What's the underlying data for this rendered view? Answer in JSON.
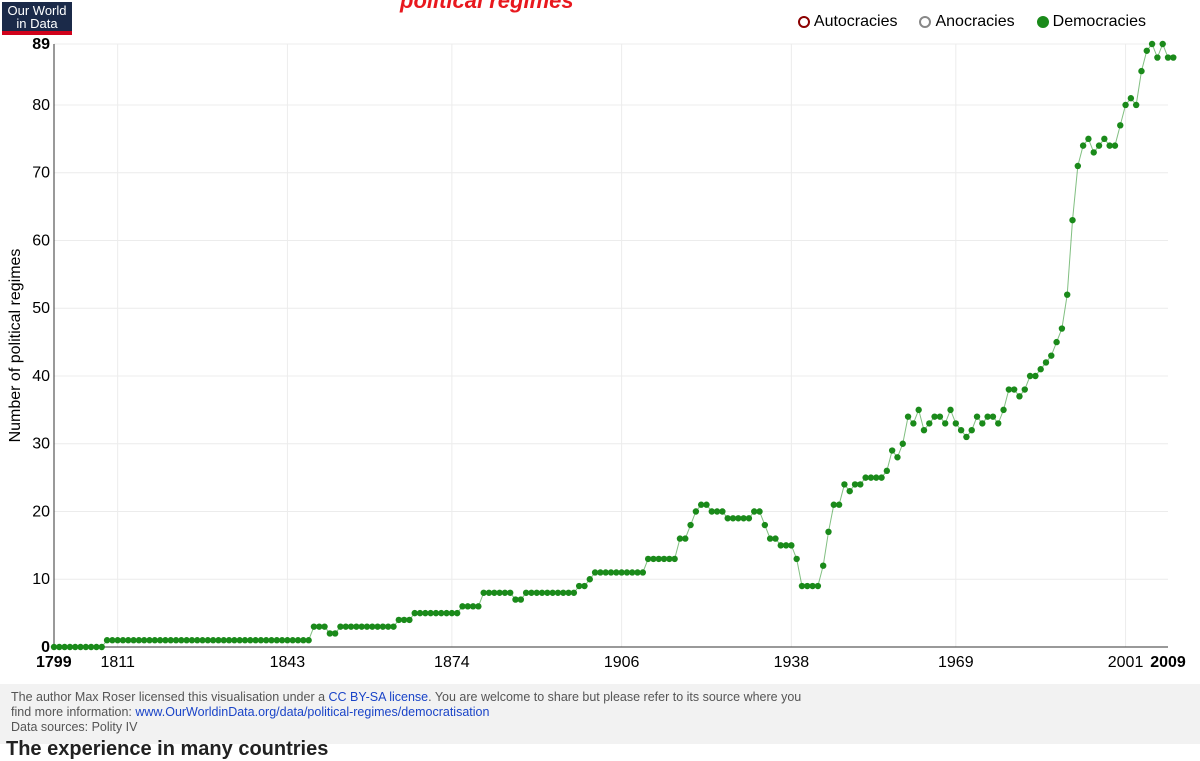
{
  "logo": {
    "line1": "Our World",
    "line2": "in Data"
  },
  "header": {
    "title_fragment": "political regimes"
  },
  "legend": {
    "items": [
      {
        "label": "Autocracies",
        "color": "#8b0000",
        "active": false
      },
      {
        "label": "Anocracies",
        "color": "#888888",
        "active": false
      },
      {
        "label": "Democracies",
        "color": "#1a8a1a",
        "active": true
      }
    ]
  },
  "chart_data": {
    "type": "scatter",
    "ylabel": "Number of political regimes",
    "xlabel": "",
    "xlim": [
      1799,
      2009
    ],
    "ylim": [
      0,
      89
    ],
    "x_ticks": [
      1799,
      1811,
      1843,
      1874,
      1906,
      1938,
      1969,
      2001,
      2009
    ],
    "x_ticks_bold": [
      1799,
      2009
    ],
    "y_ticks": [
      0,
      10,
      20,
      30,
      40,
      50,
      60,
      70,
      80,
      89
    ],
    "y_ticks_bold": [
      0,
      89
    ],
    "grid": true,
    "series": [
      {
        "name": "Democracies",
        "color": "#1a8a1a",
        "values": [
          [
            1799,
            0
          ],
          [
            1800,
            0
          ],
          [
            1801,
            0
          ],
          [
            1802,
            0
          ],
          [
            1803,
            0
          ],
          [
            1804,
            0
          ],
          [
            1805,
            0
          ],
          [
            1806,
            0
          ],
          [
            1807,
            0
          ],
          [
            1808,
            0
          ],
          [
            1809,
            1
          ],
          [
            1810,
            1
          ],
          [
            1811,
            1
          ],
          [
            1812,
            1
          ],
          [
            1813,
            1
          ],
          [
            1814,
            1
          ],
          [
            1815,
            1
          ],
          [
            1816,
            1
          ],
          [
            1817,
            1
          ],
          [
            1818,
            1
          ],
          [
            1819,
            1
          ],
          [
            1820,
            1
          ],
          [
            1821,
            1
          ],
          [
            1822,
            1
          ],
          [
            1823,
            1
          ],
          [
            1824,
            1
          ],
          [
            1825,
            1
          ],
          [
            1826,
            1
          ],
          [
            1827,
            1
          ],
          [
            1828,
            1
          ],
          [
            1829,
            1
          ],
          [
            1830,
            1
          ],
          [
            1831,
            1
          ],
          [
            1832,
            1
          ],
          [
            1833,
            1
          ],
          [
            1834,
            1
          ],
          [
            1835,
            1
          ],
          [
            1836,
            1
          ],
          [
            1837,
            1
          ],
          [
            1838,
            1
          ],
          [
            1839,
            1
          ],
          [
            1840,
            1
          ],
          [
            1841,
            1
          ],
          [
            1842,
            1
          ],
          [
            1843,
            1
          ],
          [
            1844,
            1
          ],
          [
            1845,
            1
          ],
          [
            1846,
            1
          ],
          [
            1847,
            1
          ],
          [
            1848,
            3
          ],
          [
            1849,
            3
          ],
          [
            1850,
            3
          ],
          [
            1851,
            2
          ],
          [
            1852,
            2
          ],
          [
            1853,
            3
          ],
          [
            1854,
            3
          ],
          [
            1855,
            3
          ],
          [
            1856,
            3
          ],
          [
            1857,
            3
          ],
          [
            1858,
            3
          ],
          [
            1859,
            3
          ],
          [
            1860,
            3
          ],
          [
            1861,
            3
          ],
          [
            1862,
            3
          ],
          [
            1863,
            3
          ],
          [
            1864,
            4
          ],
          [
            1865,
            4
          ],
          [
            1866,
            4
          ],
          [
            1867,
            5
          ],
          [
            1868,
            5
          ],
          [
            1869,
            5
          ],
          [
            1870,
            5
          ],
          [
            1871,
            5
          ],
          [
            1872,
            5
          ],
          [
            1873,
            5
          ],
          [
            1874,
            5
          ],
          [
            1875,
            5
          ],
          [
            1876,
            6
          ],
          [
            1877,
            6
          ],
          [
            1878,
            6
          ],
          [
            1879,
            6
          ],
          [
            1880,
            8
          ],
          [
            1881,
            8
          ],
          [
            1882,
            8
          ],
          [
            1883,
            8
          ],
          [
            1884,
            8
          ],
          [
            1885,
            8
          ],
          [
            1886,
            7
          ],
          [
            1887,
            7
          ],
          [
            1888,
            8
          ],
          [
            1889,
            8
          ],
          [
            1890,
            8
          ],
          [
            1891,
            8
          ],
          [
            1892,
            8
          ],
          [
            1893,
            8
          ],
          [
            1894,
            8
          ],
          [
            1895,
            8
          ],
          [
            1896,
            8
          ],
          [
            1897,
            8
          ],
          [
            1898,
            9
          ],
          [
            1899,
            9
          ],
          [
            1900,
            10
          ],
          [
            1901,
            11
          ],
          [
            1902,
            11
          ],
          [
            1903,
            11
          ],
          [
            1904,
            11
          ],
          [
            1905,
            11
          ],
          [
            1906,
            11
          ],
          [
            1907,
            11
          ],
          [
            1908,
            11
          ],
          [
            1909,
            11
          ],
          [
            1910,
            11
          ],
          [
            1911,
            13
          ],
          [
            1912,
            13
          ],
          [
            1913,
            13
          ],
          [
            1914,
            13
          ],
          [
            1915,
            13
          ],
          [
            1916,
            13
          ],
          [
            1917,
            16
          ],
          [
            1918,
            16
          ],
          [
            1919,
            18
          ],
          [
            1920,
            20
          ],
          [
            1921,
            21
          ],
          [
            1922,
            21
          ],
          [
            1923,
            20
          ],
          [
            1924,
            20
          ],
          [
            1925,
            20
          ],
          [
            1926,
            19
          ],
          [
            1927,
            19
          ],
          [
            1928,
            19
          ],
          [
            1929,
            19
          ],
          [
            1930,
            19
          ],
          [
            1931,
            20
          ],
          [
            1932,
            20
          ],
          [
            1933,
            18
          ],
          [
            1934,
            16
          ],
          [
            1935,
            16
          ],
          [
            1936,
            15
          ],
          [
            1937,
            15
          ],
          [
            1938,
            15
          ],
          [
            1939,
            13
          ],
          [
            1940,
            9
          ],
          [
            1941,
            9
          ],
          [
            1942,
            9
          ],
          [
            1943,
            9
          ],
          [
            1944,
            12
          ],
          [
            1945,
            17
          ],
          [
            1946,
            21
          ],
          [
            1947,
            21
          ],
          [
            1948,
            24
          ],
          [
            1949,
            23
          ],
          [
            1950,
            24
          ],
          [
            1951,
            24
          ],
          [
            1952,
            25
          ],
          [
            1953,
            25
          ],
          [
            1954,
            25
          ],
          [
            1955,
            25
          ],
          [
            1956,
            26
          ],
          [
            1957,
            29
          ],
          [
            1958,
            28
          ],
          [
            1959,
            30
          ],
          [
            1960,
            34
          ],
          [
            1961,
            33
          ],
          [
            1962,
            35
          ],
          [
            1963,
            32
          ],
          [
            1964,
            33
          ],
          [
            1965,
            34
          ],
          [
            1966,
            34
          ],
          [
            1967,
            33
          ],
          [
            1968,
            35
          ],
          [
            1969,
            33
          ],
          [
            1970,
            32
          ],
          [
            1971,
            31
          ],
          [
            1972,
            32
          ],
          [
            1973,
            34
          ],
          [
            1974,
            33
          ],
          [
            1975,
            34
          ],
          [
            1976,
            34
          ],
          [
            1977,
            33
          ],
          [
            1978,
            35
          ],
          [
            1979,
            38
          ],
          [
            1980,
            38
          ],
          [
            1981,
            37
          ],
          [
            1982,
            38
          ],
          [
            1983,
            40
          ],
          [
            1984,
            40
          ],
          [
            1985,
            41
          ],
          [
            1986,
            42
          ],
          [
            1987,
            43
          ],
          [
            1988,
            45
          ],
          [
            1989,
            47
          ],
          [
            1990,
            52
          ],
          [
            1991,
            63
          ],
          [
            1992,
            71
          ],
          [
            1993,
            74
          ],
          [
            1994,
            75
          ],
          [
            1995,
            73
          ],
          [
            1996,
            74
          ],
          [
            1997,
            75
          ],
          [
            1998,
            74
          ],
          [
            1999,
            74
          ],
          [
            2000,
            77
          ],
          [
            2001,
            80
          ],
          [
            2002,
            81
          ],
          [
            2003,
            80
          ],
          [
            2004,
            85
          ],
          [
            2005,
            88
          ],
          [
            2006,
            89
          ],
          [
            2007,
            87
          ],
          [
            2008,
            89
          ],
          [
            2009,
            87
          ],
          [
            2010,
            87
          ]
        ]
      }
    ]
  },
  "footer": {
    "license_prefix": "The author Max Roser licensed this visualisation under a ",
    "license_link": "CC BY-SA license",
    "license_suffix": ". You are welcome to share but please refer to its source where you",
    "more_info_prefix": "find more information: ",
    "more_info_link": "www.OurWorldinData.org/data/political-regimes/democratisation",
    "sources": "Data sources: Polity IV"
  },
  "bottom_text": "The experience in many countries"
}
